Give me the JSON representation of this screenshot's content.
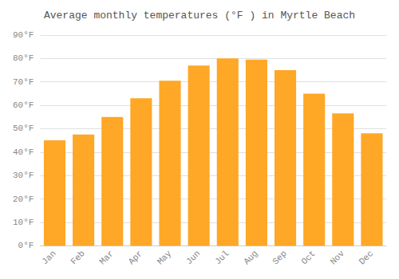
{
  "chart_data": {
    "type": "bar",
    "title": "Average monthly temperatures (°F ) in Myrtle Beach",
    "categories": [
      "Jan",
      "Feb",
      "Mar",
      "Apr",
      "May",
      "Jun",
      "Jul",
      "Aug",
      "Sep",
      "Oct",
      "Nov",
      "Dec"
    ],
    "values": [
      45,
      47.5,
      55,
      63,
      70.5,
      77,
      80,
      79.5,
      75,
      65,
      56.5,
      48
    ],
    "color": "#FFA726",
    "ylim": [
      0,
      90
    ],
    "yticks": [
      {
        "value": 0,
        "label": "0°F"
      },
      {
        "value": 10,
        "label": "10°F"
      },
      {
        "value": 20,
        "label": "20°F"
      },
      {
        "value": 30,
        "label": "30°F"
      },
      {
        "value": 40,
        "label": "40°F"
      },
      {
        "value": 50,
        "label": "50°F"
      },
      {
        "value": 60,
        "label": "60°F"
      },
      {
        "value": 70,
        "label": "70°F"
      },
      {
        "value": 80,
        "label": "80°F"
      },
      {
        "value": 90,
        "label": "90°F"
      }
    ],
    "grid": true
  }
}
